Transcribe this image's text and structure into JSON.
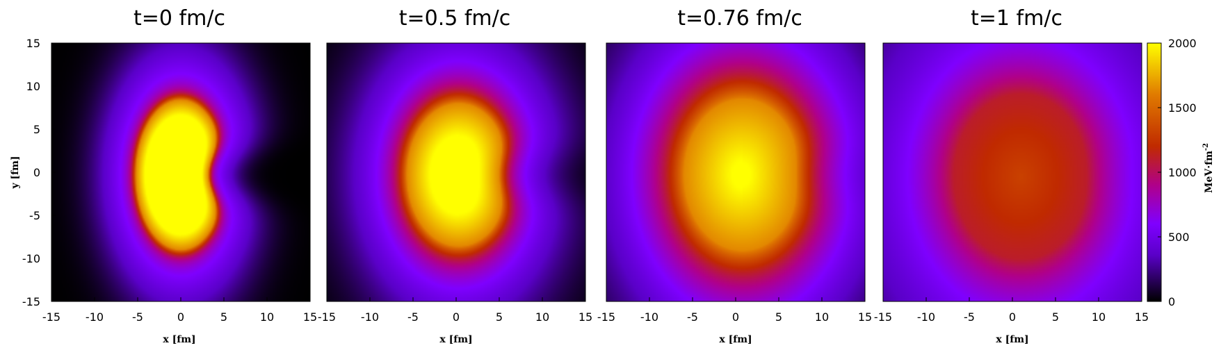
{
  "chart_data": [
    {
      "type": "heatmap",
      "title": "t=0 fm/c",
      "xlabel": "x [fm]",
      "ylabel": "y [fm]",
      "xlim": [
        -15,
        15
      ],
      "ylim": [
        -15,
        15
      ],
      "x_ticks": [
        "-15",
        "-10",
        "-5",
        "0",
        "5",
        "10",
        "15"
      ],
      "y_ticks": [
        "-15",
        "-10",
        "-5",
        "0",
        "5",
        "10",
        "15"
      ],
      "field": {
        "cx": 0.0,
        "cy": -0.3,
        "rx": 5.2,
        "ry": 8.7,
        "dent": 2.0,
        "peak": 2000,
        "halo": 4.6,
        "edge": 0.7
      }
    },
    {
      "type": "heatmap",
      "title": "t=0.5 fm/c",
      "xlabel": "x [fm]",
      "ylabel": "",
      "xlim": [
        -15,
        15
      ],
      "ylim": [
        -15,
        15
      ],
      "x_ticks": [
        "-15",
        "-10",
        "-5",
        "0",
        "5",
        "10",
        "15"
      ],
      "y_ticks": [],
      "field": {
        "cx": 0.3,
        "cy": -0.3,
        "rx": 6.0,
        "ry": 8.3,
        "dent": 1.3,
        "peak": 2000,
        "halo": 6.5,
        "edge": 1.6
      }
    },
    {
      "type": "heatmap",
      "title": "t=0.76 fm/c",
      "xlabel": "x [fm]",
      "ylabel": "",
      "xlim": [
        -15,
        15
      ],
      "ylim": [
        -15,
        15
      ],
      "x_ticks": [
        "-15",
        "-10",
        "-5",
        "0",
        "5",
        "10",
        "15"
      ],
      "y_ticks": [],
      "field": {
        "cx": 0.8,
        "cy": -0.3,
        "rx": 6.8,
        "ry": 8.8,
        "dent": 0.6,
        "peak": 2000,
        "halo": 9.0,
        "edge": 3.2
      }
    },
    {
      "type": "heatmap",
      "title": "t=1 fm/c",
      "xlabel": "x [fm]",
      "ylabel": "",
      "xlim": [
        -15,
        15
      ],
      "ylim": [
        -15,
        15
      ],
      "x_ticks": [
        "-15",
        "-10",
        "-5",
        "0",
        "5",
        "10",
        "15"
      ],
      "y_ticks": [],
      "field": {
        "cx": 1.0,
        "cy": -0.5,
        "rx": 7.8,
        "ry": 9.6,
        "dent": 0.2,
        "peak": 1350,
        "halo": 13.0,
        "edge": 5.0
      }
    }
  ],
  "colorbar": {
    "label": "MeV·fm",
    "label_exponent": "-2",
    "range": [
      0,
      2000
    ],
    "ticks": [
      "0",
      "500",
      "1000",
      "1500",
      "2000"
    ],
    "colors": [
      "#000000",
      "#5a00c8",
      "#7f00ff",
      "#b0008a",
      "#c02a00",
      "#e07a00",
      "#ffff00"
    ]
  }
}
